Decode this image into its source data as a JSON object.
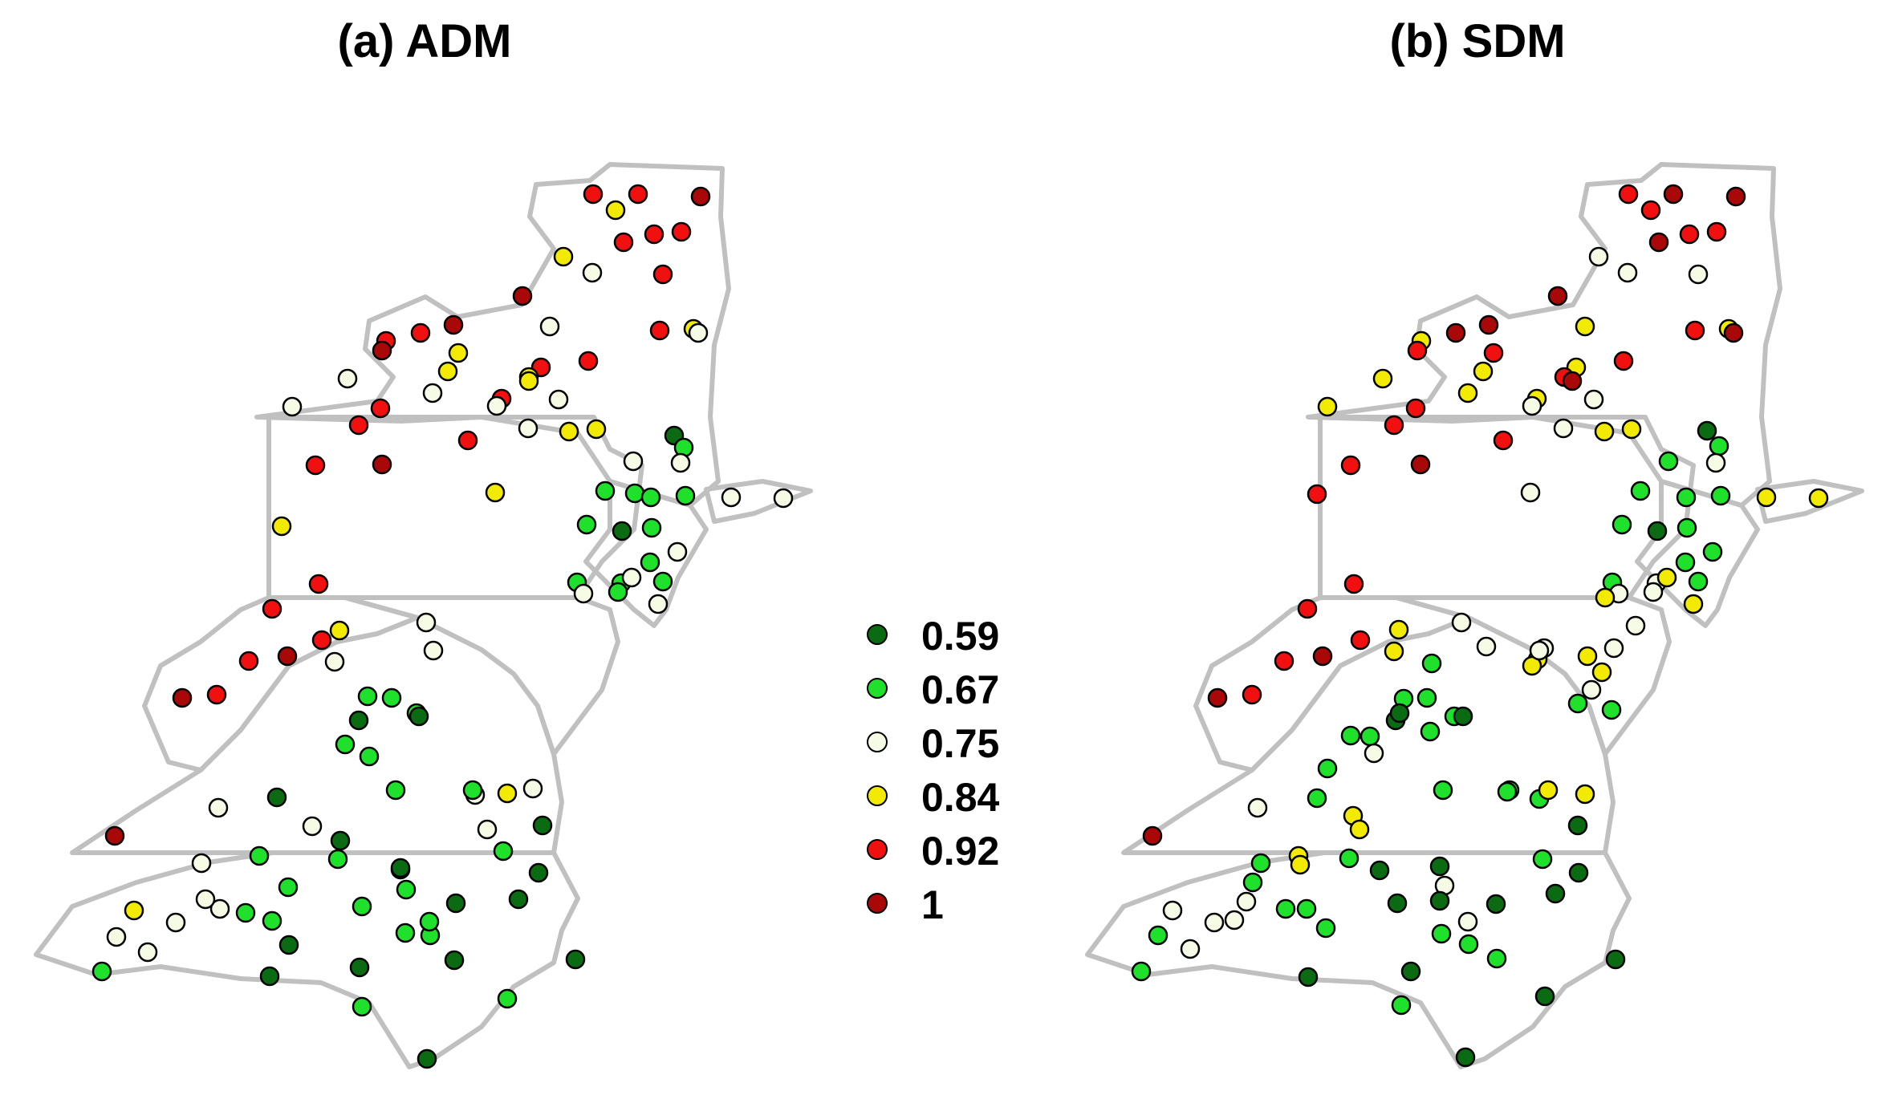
{
  "panels": [
    {
      "title": "(a) ADM",
      "sites": [
        [
          "c5",
          739,
          242
        ],
        [
          "c4",
          767,
          262
        ],
        [
          "c5",
          795,
          242
        ],
        [
          "c6",
          873,
          245
        ],
        [
          "c5",
          777,
          302
        ],
        [
          "c5",
          815,
          292
        ],
        [
          "c5",
          849,
          289
        ],
        [
          "c4",
          702,
          320
        ],
        [
          "c3",
          738,
          340
        ],
        [
          "c5",
          826,
          342
        ],
        [
          "c6",
          651,
          369
        ],
        [
          "c3",
          685,
          407
        ],
        [
          "c5",
          822,
          412
        ],
        [
          "c4",
          864,
          410
        ],
        [
          "c3",
          870,
          415
        ],
        [
          "c6",
          565,
          405
        ],
        [
          "c5",
          524,
          415
        ],
        [
          "c4",
          571,
          440
        ],
        [
          "c4",
          558,
          463
        ],
        [
          "c3",
          539,
          490
        ],
        [
          "c5",
          481,
          425
        ],
        [
          "c3",
          433,
          472
        ],
        [
          "c6",
          476,
          437
        ],
        [
          "c5",
          674,
          458
        ],
        [
          "c4",
          659,
          470
        ],
        [
          "c5",
          733,
          450
        ],
        [
          "c5",
          625,
          497
        ],
        [
          "c4",
          659,
          475
        ],
        [
          "c3",
          696,
          498
        ],
        [
          "c4",
          709,
          538
        ],
        [
          "c3",
          619,
          506
        ],
        [
          "c3",
          364,
          507
        ],
        [
          "c5",
          447,
          530
        ],
        [
          "c5",
          474,
          509
        ],
        [
          "c5",
          583,
          549
        ],
        [
          "c3",
          658,
          534
        ],
        [
          "c4",
          743,
          535
        ],
        [
          "c6",
          476,
          579
        ],
        [
          "c5",
          393,
          580
        ],
        [
          "c4",
          351,
          656
        ],
        [
          "c4",
          617,
          614
        ],
        [
          "c2",
          791,
          615
        ],
        [
          "c1",
          840,
          543
        ],
        [
          "c2",
          852,
          558
        ],
        [
          "c3",
          848,
          577
        ],
        [
          "c3",
          789,
          575
        ],
        [
          "c2",
          754,
          612
        ],
        [
          "c2",
          811,
          620
        ],
        [
          "c2",
          854,
          618
        ],
        [
          "c3",
          911,
          620
        ],
        [
          "c3",
          976,
          621
        ],
        [
          "c2",
          731,
          654
        ],
        [
          "c1",
          775,
          662
        ],
        [
          "c2",
          812,
          658
        ],
        [
          "c2",
          810,
          701
        ],
        [
          "c3",
          844,
          688
        ],
        [
          "c2",
          719,
          726
        ],
        [
          "c2",
          774,
          727
        ],
        [
          "c2",
          770,
          738
        ],
        [
          "c2",
          826,
          725
        ],
        [
          "c3",
          787,
          720
        ],
        [
          "c3",
          820,
          753
        ],
        [
          "c3",
          727,
          740
        ],
        [
          "c5",
          397,
          728
        ],
        [
          "c5",
          339,
          759
        ],
        [
          "c6",
          358,
          818
        ],
        [
          "c5",
          310,
          824
        ],
        [
          "c5",
          270,
          866
        ],
        [
          "c6",
          227,
          870
        ],
        [
          "c4",
          423,
          786
        ],
        [
          "c5",
          401,
          798
        ],
        [
          "c3",
          531,
          776
        ],
        [
          "c1",
          447,
          898
        ],
        [
          "c2",
          488,
          870
        ],
        [
          "c2",
          458,
          868
        ],
        [
          "c2",
          519,
          889
        ],
        [
          "c1",
          522,
          893
        ],
        [
          "c3",
          417,
          825
        ],
        [
          "c2",
          430,
          928
        ],
        [
          "c3",
          540,
          811
        ],
        [
          "c2",
          460,
          943
        ],
        [
          "c3",
          592,
          991
        ],
        [
          "c1",
          345,
          994
        ],
        [
          "c2",
          493,
          985
        ],
        [
          "c2",
          589,
          985
        ],
        [
          "c1",
          676,
          1029
        ],
        [
          "c6",
          143,
          1042
        ],
        [
          "c3",
          272,
          1007
        ],
        [
          "c3",
          389,
          1030
        ],
        [
          "c2",
          421,
          1071
        ],
        [
          "c2",
          323,
          1067
        ],
        [
          "c1",
          499,
          1084
        ],
        [
          "c2",
          627,
          1061
        ],
        [
          "c4",
          632,
          989
        ],
        [
          "c3",
          664,
          983
        ],
        [
          "c3",
          607,
          1034
        ],
        [
          "c1",
          424,
          1048
        ],
        [
          "c2",
          359,
          1106
        ],
        [
          "c3",
          251,
          1076
        ],
        [
          "c3",
          274,
          1133
        ],
        [
          "c4",
          167,
          1135
        ],
        [
          "c3",
          256,
          1121
        ],
        [
          "c3",
          219,
          1150
        ],
        [
          "c3",
          184,
          1187
        ],
        [
          "c3",
          145,
          1168
        ],
        [
          "c2",
          306,
          1138
        ],
        [
          "c2",
          339,
          1148
        ],
        [
          "c1",
          360,
          1178
        ],
        [
          "c1",
          336,
          1217
        ],
        [
          "c2",
          451,
          1130
        ],
        [
          "c1",
          499,
          1082
        ],
        [
          "c1",
          448,
          1206
        ],
        [
          "c2",
          506,
          1109
        ],
        [
          "c1",
          568,
          1126
        ],
        [
          "c2",
          536,
          1166
        ],
        [
          "c2",
          535,
          1149
        ],
        [
          "c2",
          505,
          1163
        ],
        [
          "c1",
          566,
          1197
        ],
        [
          "c2",
          632,
          1245
        ],
        [
          "c1",
          646,
          1121
        ],
        [
          "c1",
          671,
          1088
        ],
        [
          "c1",
          717,
          1196
        ],
        [
          "c2",
          127,
          1211
        ],
        [
          "c2",
          451,
          1255
        ],
        [
          "c1",
          532,
          1320
        ]
      ]
    },
    {
      "title": "(b) SDM",
      "sites": [
        [
          "c5",
          2029,
          242
        ],
        [
          "c5",
          2057,
          262
        ],
        [
          "c6",
          2085,
          242
        ],
        [
          "c6",
          2163,
          245
        ],
        [
          "c6",
          2067,
          302
        ],
        [
          "c5",
          2105,
          292
        ],
        [
          "c5",
          2139,
          289
        ],
        [
          "c3",
          1992,
          320
        ],
        [
          "c3",
          2028,
          340
        ],
        [
          "c3",
          2116,
          342
        ],
        [
          "c6",
          1941,
          369
        ],
        [
          "c4",
          1975,
          407
        ],
        [
          "c5",
          2112,
          412
        ],
        [
          "c4",
          2154,
          410
        ],
        [
          "c6",
          2160,
          415
        ],
        [
          "c6",
          1855,
          405
        ],
        [
          "c6",
          1814,
          415
        ],
        [
          "c5",
          1861,
          440
        ],
        [
          "c4",
          1848,
          463
        ],
        [
          "c4",
          1829,
          490
        ],
        [
          "c4",
          1771,
          425
        ],
        [
          "c4",
          1723,
          472
        ],
        [
          "c5",
          1766,
          437
        ],
        [
          "c4",
          1964,
          458
        ],
        [
          "c5",
          1949,
          470
        ],
        [
          "c5",
          2023,
          450
        ],
        [
          "c4",
          1915,
          497
        ],
        [
          "c6",
          1959,
          475
        ],
        [
          "c3",
          1986,
          498
        ],
        [
          "c4",
          1999,
          538
        ],
        [
          "c3",
          1909,
          506
        ],
        [
          "c4",
          1654,
          507
        ],
        [
          "c5",
          1737,
          530
        ],
        [
          "c5",
          1764,
          509
        ],
        [
          "c5",
          1873,
          549
        ],
        [
          "c3",
          1948,
          534
        ],
        [
          "c4",
          2033,
          535
        ],
        [
          "c6",
          1770,
          579
        ],
        [
          "c5",
          1683,
          580
        ],
        [
          "c5",
          1641,
          616
        ],
        [
          "c3",
          1907,
          614
        ],
        [
          "c1",
          2127,
          537
        ],
        [
          "c2",
          2142,
          556
        ],
        [
          "c3",
          2138,
          577
        ],
        [
          "c2",
          2079,
          575
        ],
        [
          "c2",
          2044,
          612
        ],
        [
          "c2",
          2101,
          620
        ],
        [
          "c2",
          2144,
          618
        ],
        [
          "c4",
          2201,
          620
        ],
        [
          "c4",
          2266,
          621
        ],
        [
          "c2",
          2021,
          654
        ],
        [
          "c1",
          2065,
          662
        ],
        [
          "c2",
          2102,
          658
        ],
        [
          "c2",
          2100,
          701
        ],
        [
          "c2",
          2134,
          688
        ],
        [
          "c2",
          2009,
          726
        ],
        [
          "c3",
          2064,
          727
        ],
        [
          "c3",
          2060,
          738
        ],
        [
          "c2",
          2116,
          725
        ],
        [
          "c4",
          2077,
          720
        ],
        [
          "c4",
          2110,
          753
        ],
        [
          "c3",
          2017,
          740
        ],
        [
          "c5",
          1687,
          728
        ],
        [
          "c5",
          1629,
          759
        ],
        [
          "c6",
          1648,
          818
        ],
        [
          "c5",
          1600,
          824
        ],
        [
          "c5",
          1560,
          866
        ],
        [
          "c6",
          1517,
          870
        ],
        [
          "c5",
          1695,
          798
        ],
        [
          "c3",
          1821,
          776
        ],
        [
          "c4",
          1743,
          785
        ],
        [
          "c4",
          1737,
          812
        ],
        [
          "c4",
          1978,
          818
        ],
        [
          "c4",
          1996,
          838
        ],
        [
          "c3",
          2011,
          808
        ],
        [
          "c3",
          1983,
          860
        ],
        [
          "c3",
          2038,
          780
        ],
        [
          "c4",
          2000,
          745
        ],
        [
          "c3",
          1924,
          808
        ],
        [
          "c4",
          1916,
          822
        ],
        [
          "c4",
          1909,
          830
        ],
        [
          "c3",
          1852,
          806
        ],
        [
          "c2",
          1784,
          827
        ],
        [
          "c2",
          1749,
          871
        ],
        [
          "c1",
          1739,
          898
        ],
        [
          "c2",
          1778,
          870
        ],
        [
          "c2",
          1812,
          893
        ],
        [
          "c2",
          1707,
          918
        ],
        [
          "c1",
          1823,
          893
        ],
        [
          "c2",
          1683,
          917
        ],
        [
          "c2",
          1654,
          958
        ],
        [
          "c3",
          1712,
          939
        ],
        [
          "c1",
          1744,
          889
        ],
        [
          "c2",
          1782,
          912
        ],
        [
          "c2",
          1798,
          985
        ],
        [
          "c2",
          1881,
          985
        ],
        [
          "c2",
          1966,
          877
        ],
        [
          "c2",
          2008,
          885
        ],
        [
          "c3",
          1918,
          811
        ],
        [
          "c4",
          1975,
          990
        ],
        [
          "c2",
          1878,
          987
        ],
        [
          "c1",
          1966,
          1029
        ],
        [
          "c6",
          1436,
          1042
        ],
        [
          "c3",
          1567,
          1007
        ],
        [
          "c2",
          1641,
          995
        ],
        [
          "c2",
          1681,
          1070
        ],
        [
          "c1",
          1719,
          1085
        ],
        [
          "c4",
          1686,
          1017
        ],
        [
          "c2",
          1918,
          996
        ],
        [
          "c2",
          1922,
          1071
        ],
        [
          "c4",
          1929,
          985
        ],
        [
          "c4",
          1694,
          1034
        ],
        [
          "c4",
          1618,
          1067
        ],
        [
          "c4",
          1620,
          1078
        ],
        [
          "c2",
          1571,
          1076
        ],
        [
          "c2",
          1561,
          1100
        ],
        [
          "c1",
          1794,
          1080
        ],
        [
          "c3",
          1800,
          1104
        ],
        [
          "c1",
          1864,
          1127
        ],
        [
          "c1",
          1938,
          1114
        ],
        [
          "c1",
          1967,
          1088
        ],
        [
          "c3",
          1461,
          1135
        ],
        [
          "c2",
          1443,
          1166
        ],
        [
          "c3",
          1483,
          1183
        ],
        [
          "c3",
          1513,
          1150
        ],
        [
          "c3",
          1538,
          1147
        ],
        [
          "c3",
          1553,
          1124
        ],
        [
          "c2",
          1602,
          1133
        ],
        [
          "c2",
          1628,
          1133
        ],
        [
          "c2",
          1652,
          1157
        ],
        [
          "c1",
          1741,
          1126
        ],
        [
          "c1",
          1794,
          1123
        ],
        [
          "c3",
          1829,
          1149
        ],
        [
          "c2",
          1830,
          1177
        ],
        [
          "c2",
          1796,
          1164
        ],
        [
          "c2",
          1865,
          1195
        ],
        [
          "c2",
          1422,
          1211
        ],
        [
          "c1",
          1630,
          1218
        ],
        [
          "c1",
          1758,
          1211
        ],
        [
          "c2",
          1746,
          1253
        ],
        [
          "c1",
          1925,
          1242
        ],
        [
          "c1",
          2013,
          1196
        ],
        [
          "c1",
          1826,
          1318
        ]
      ]
    }
  ],
  "legend": [
    {
      "key": "c1",
      "label": "0.59",
      "color": "#0b6b12"
    },
    {
      "key": "c2",
      "label": "0.67",
      "color": "#1fe02a"
    },
    {
      "key": "c3",
      "label": "0.75",
      "color": "#f6fbe6"
    },
    {
      "key": "c4",
      "label": "0.84",
      "color": "#f2ea00"
    },
    {
      "key": "c5",
      "label": "0.92",
      "color": "#f01010"
    },
    {
      "key": "c6",
      "label": "1",
      "color": "#a80808"
    }
  ],
  "site_colors": {
    "c1": "#0b6b12",
    "c2": "#1fe02a",
    "c3": "#f6fbe6",
    "c4": "#f2ea00",
    "c5": "#f01010",
    "c6": "#a80808",
    "c3b": "#a8f0b0",
    "c4b": "#f08c00"
  }
}
